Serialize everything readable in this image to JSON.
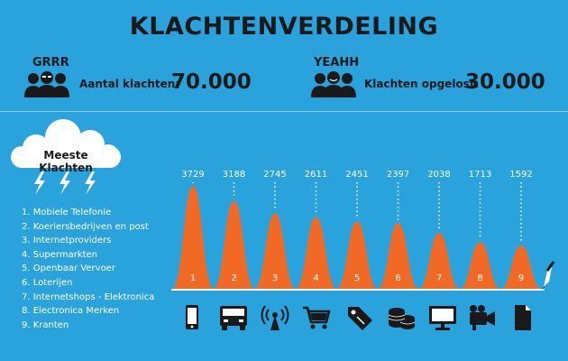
{
  "header": {
    "title": "KLACHTENVERDELING"
  },
  "stats": {
    "left": {
      "tag": "GRRR",
      "label": "Aantal klachten:",
      "value": "70.000",
      "icon": "angry-people-icon"
    },
    "right": {
      "tag": "YEAHH",
      "label": "Klachten opgelost:",
      "value": "30.000",
      "icon": "happy-people-icon"
    }
  },
  "sidebar": {
    "cloud_label": "Meeste Klachten",
    "cloud_icon": "storm-cloud-icon",
    "items": [
      "1. Mobiele Telefonie",
      "2. Koeriersbedrijven en post",
      "3. Internetproviders",
      "4. Supermarkten",
      "5. Openbaar Vervoer",
      "6. Loterijen",
      "7. Internetshops - Elektronica",
      "8. Electronica Merken",
      "9. Kranten"
    ]
  },
  "colors": {
    "background": "#2aa3dd",
    "peak": "#f06a25",
    "dark": "#1a1a1a",
    "text": "#ffffff"
  },
  "chart_data": {
    "type": "area",
    "categories": [
      "1",
      "2",
      "3",
      "4",
      "5",
      "6",
      "7",
      "8",
      "9"
    ],
    "values": [
      3729,
      3188,
      2745,
      2611,
      2451,
      2397,
      2038,
      1713,
      1592
    ],
    "data_labels": [
      "3729",
      "3188",
      "2745",
      "2611",
      "2451",
      "2397",
      "2038",
      "1713",
      "1592"
    ],
    "icons": [
      "phone-icon",
      "truck-icon",
      "antenna-icon",
      "shopping-cart-icon",
      "tag-icon",
      "coins-icon",
      "monitor-icon",
      "camcorder-icon",
      "document-icon"
    ],
    "ylim": [
      0,
      3729
    ],
    "grid": false,
    "legend": "none"
  }
}
